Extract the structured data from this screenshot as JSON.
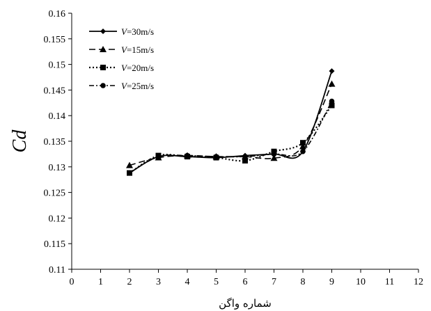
{
  "chart_data": {
    "type": "line",
    "xlabel": "شماره واگن",
    "ylabel": "Cd",
    "xlim": [
      0,
      12
    ],
    "ylim": [
      0.11,
      0.16
    ],
    "xticks": [
      "0",
      "1",
      "2",
      "3",
      "4",
      "5",
      "6",
      "7",
      "8",
      "9",
      "10",
      "11",
      "12"
    ],
    "yticks": [
      "0.11",
      "0.115",
      "0.12",
      "0.125",
      "0.13",
      "0.135",
      "0.14",
      "0.145",
      "0.15",
      "0.155",
      "0.16"
    ],
    "grid": false,
    "legend_position": "top-left",
    "x": [
      2,
      3,
      4,
      5,
      6,
      7,
      8,
      9
    ],
    "series": [
      {
        "name": "V=30m/s",
        "marker": "diamond",
        "dash": "solid",
        "values": [
          0.1288,
          0.132,
          0.132,
          0.1318,
          0.1322,
          0.1325,
          0.133,
          0.1487
        ]
      },
      {
        "name": "V=15m/s",
        "marker": "triangle",
        "dash": "dashed",
        "values": [
          0.1303,
          0.1318,
          0.1322,
          0.132,
          0.132,
          0.1317,
          0.134,
          0.1462
        ]
      },
      {
        "name": "V=20m/s",
        "marker": "square",
        "dash": "dotted",
        "values": [
          0.1288,
          0.1322,
          0.132,
          0.1318,
          0.1312,
          0.133,
          0.1347,
          0.142
        ]
      },
      {
        "name": "V=25m/s",
        "marker": "circle",
        "dash": "dashdot",
        "values": [
          0.1288,
          0.132,
          0.1322,
          0.132,
          0.132,
          0.1325,
          0.133,
          0.1428
        ]
      }
    ]
  }
}
